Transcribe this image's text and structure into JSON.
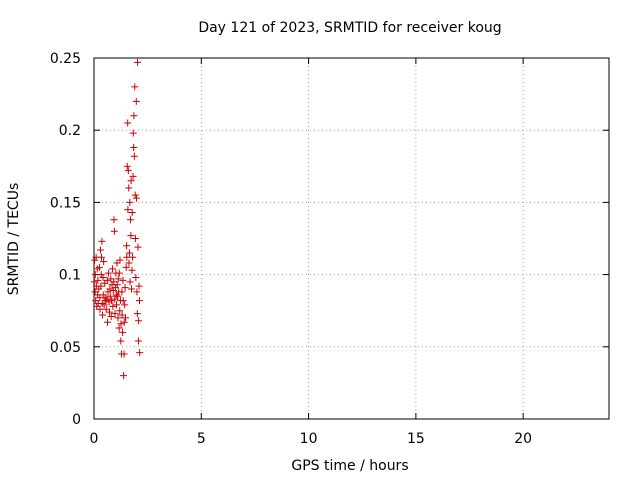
{
  "chart_data": {
    "type": "scatter",
    "title": "Day 121 of 2023, SRMTID for receiver koug",
    "xlabel": "GPS time / hours",
    "ylabel": "SRMTID / TECUs",
    "xlim": [
      0,
      24
    ],
    "ylim": [
      0,
      0.25
    ],
    "xticks": [
      0,
      5,
      10,
      15,
      20
    ],
    "xtick_labels": [
      "0",
      "5",
      "10",
      "15",
      "20"
    ],
    "yticks": [
      0,
      0.05,
      0.1,
      0.15,
      0.2,
      0.25
    ],
    "ytick_labels": [
      "0",
      "0.05",
      "0.1",
      "0.15",
      "0.2",
      "0.25"
    ],
    "grid": true,
    "marker": "+",
    "series": [
      {
        "name": "koug",
        "color": "#cc0000",
        "points": [
          [
            0.02,
            0.095
          ],
          [
            0.03,
            0.11
          ],
          [
            0.05,
            0.088
          ],
          [
            0.06,
            0.1
          ],
          [
            0.08,
            0.082
          ],
          [
            0.1,
            0.112
          ],
          [
            0.11,
            0.092
          ],
          [
            0.13,
            0.078
          ],
          [
            0.15,
            0.104
          ],
          [
            0.17,
            0.086
          ],
          [
            0.18,
            0.096
          ],
          [
            0.2,
            0.08
          ],
          [
            0.22,
            0.09
          ],
          [
            0.25,
            0.105
          ],
          [
            0.27,
            0.084
          ],
          [
            0.28,
            0.076
          ],
          [
            0.3,
            0.117
          ],
          [
            0.32,
            0.092
          ],
          [
            0.34,
            0.1
          ],
          [
            0.35,
            0.112
          ],
          [
            0.37,
            0.123
          ],
          [
            0.38,
            0.08
          ],
          [
            0.4,
            0.072
          ],
          [
            0.42,
            0.098
          ],
          [
            0.43,
            0.086
          ],
          [
            0.45,
            0.109
          ],
          [
            0.47,
            0.079
          ],
          [
            0.5,
            0.094
          ],
          [
            0.52,
            0.084
          ],
          [
            0.55,
            0.082
          ],
          [
            0.57,
            0.076
          ],
          [
            0.6,
            0.083
          ],
          [
            0.62,
            0.096
          ],
          [
            0.63,
            0.067
          ],
          [
            0.65,
            0.088
          ],
          [
            0.67,
            0.101
          ],
          [
            0.7,
            0.081
          ],
          [
            0.72,
            0.074
          ],
          [
            0.74,
            0.09
          ],
          [
            0.76,
            0.085
          ],
          [
            0.78,
            0.097
          ],
          [
            0.8,
            0.071
          ],
          [
            0.82,
            0.082
          ],
          [
            0.84,
            0.093
          ],
          [
            0.86,
            0.104
          ],
          [
            0.88,
            0.078
          ],
          [
            0.9,
            0.089
          ],
          [
            0.92,
            0.095
          ],
          [
            0.93,
            0.138
          ],
          [
            0.95,
            0.13
          ],
          [
            0.97,
            0.083
          ],
          [
            0.98,
            0.073
          ],
          [
            1.0,
            0.091
          ],
          [
            1.02,
            0.101
          ],
          [
            1.04,
            0.086
          ],
          [
            1.05,
            0.079
          ],
          [
            1.07,
            0.108
          ],
          [
            1.08,
            0.093
          ],
          [
            1.1,
            0.085
          ],
          [
            1.12,
            0.07
          ],
          [
            1.13,
            0.097
          ],
          [
            1.15,
            0.088
          ],
          [
            1.17,
            0.063
          ],
          [
            1.18,
            0.101
          ],
          [
            1.2,
            0.075
          ],
          [
            1.21,
            0.11
          ],
          [
            1.23,
            0.082
          ],
          [
            1.25,
            0.054
          ],
          [
            1.26,
            0.066
          ],
          [
            1.28,
            0.045
          ],
          [
            1.3,
            0.088
          ],
          [
            1.31,
            0.072
          ],
          [
            1.33,
            0.06
          ],
          [
            1.35,
            0.096
          ],
          [
            1.36,
            0.082
          ],
          [
            1.38,
            0.03
          ],
          [
            1.4,
            0.045
          ],
          [
            1.41,
            0.067
          ],
          [
            1.43,
            0.079
          ],
          [
            1.45,
            0.091
          ],
          [
            1.47,
            0.07
          ],
          [
            1.5,
            0.105
          ],
          [
            1.52,
            0.12
          ],
          [
            1.53,
            0.112
          ],
          [
            1.55,
            0.175
          ],
          [
            1.57,
            0.205
          ],
          [
            1.58,
            0.145
          ],
          [
            1.6,
            0.172
          ],
          [
            1.62,
            0.16
          ],
          [
            1.63,
            0.108
          ],
          [
            1.65,
            0.115
          ],
          [
            1.67,
            0.15
          ],
          [
            1.68,
            0.095
          ],
          [
            1.7,
            0.138
          ],
          [
            1.72,
            0.127
          ],
          [
            1.73,
            0.165
          ],
          [
            1.75,
            0.09
          ],
          [
            1.77,
            0.103
          ],
          [
            1.78,
            0.143
          ],
          [
            1.8,
            0.112
          ],
          [
            1.82,
            0.168
          ],
          [
            1.83,
            0.198
          ],
          [
            1.85,
            0.188
          ],
          [
            1.86,
            0.21
          ],
          [
            1.88,
            0.182
          ],
          [
            1.9,
            0.23
          ],
          [
            1.92,
            0.155
          ],
          [
            1.93,
            0.125
          ],
          [
            1.95,
            0.098
          ],
          [
            1.97,
            0.22
          ],
          [
            1.98,
            0.153
          ],
          [
            2.0,
            0.088
          ],
          [
            2.02,
            0.073
          ],
          [
            2.03,
            0.247
          ],
          [
            2.05,
            0.119
          ],
          [
            2.07,
            0.054
          ],
          [
            2.08,
            0.068
          ],
          [
            2.1,
            0.092
          ],
          [
            2.12,
            0.082
          ],
          [
            2.13,
            0.046
          ]
        ]
      }
    ]
  }
}
